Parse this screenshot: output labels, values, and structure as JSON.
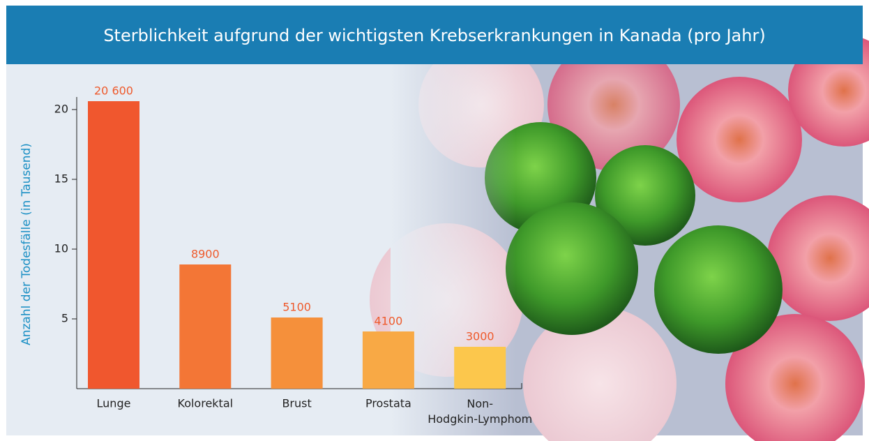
{
  "chart_data": {
    "type": "bar",
    "title": "Sterblichkeit aufgrund der wichtigsten Krebserkrankungen in Kanada (pro Jahr)",
    "y_label": "Anzahl der Todesfälle (in Tausend)",
    "categories": [
      "Lunge",
      "Kolorektal",
      "Brust",
      "Prostata",
      "Non-Hodgkin-Lymphom"
    ],
    "values": [
      20.6,
      8.9,
      5.1,
      4.1,
      3.0
    ],
    "value_labels": [
      "20 600",
      "8900",
      "5100",
      "4100",
      "3000"
    ],
    "colors": [
      "#f0572e",
      "#f37636",
      "#f5903b",
      "#f8a945",
      "#fcc74c"
    ],
    "ylim": [
      0,
      21
    ],
    "yticks": [
      5,
      10,
      15,
      20
    ],
    "grid": false
  }
}
